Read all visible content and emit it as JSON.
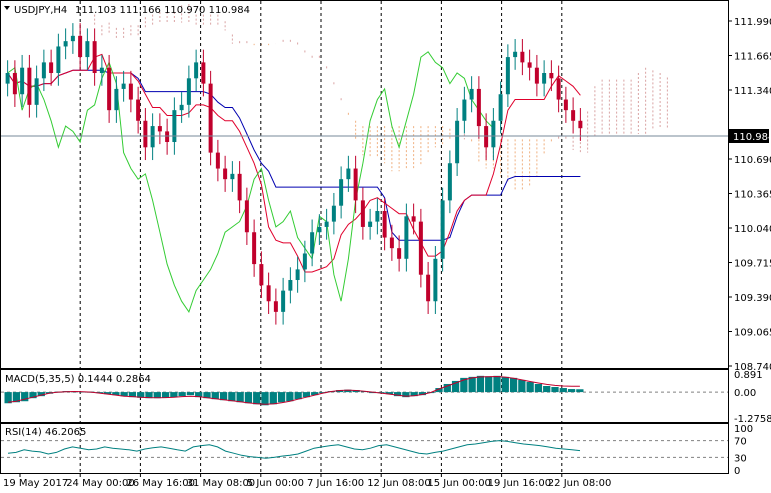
{
  "header": {
    "symbol_timeframe": "USDJPY,H4",
    "ohlc": "111.103 111.166 110.970 110.984",
    "menu_icon": "triangle-down-icon"
  },
  "colors": {
    "bull": "#008080",
    "bear": "#c0002c",
    "tenkan": "#e0002c",
    "kijun": "#0000b0",
    "chikou": "#33cc33",
    "cloud_bull": "#d9a3a3",
    "cloud_bear": "#f0b080",
    "macd_hist": "#008080",
    "macd_signal": "#c0002c",
    "rsi": "#008080",
    "price_marker_bg": "#000000"
  },
  "chart_data": [
    {
      "type": "candlestick",
      "title": "USDJPY,H4",
      "current_price": "110.984",
      "y_tick_labels": [
        "111.990",
        "111.665",
        "111.340",
        "110.690",
        "110.365",
        "110.040",
        "109.715",
        "109.390",
        "109.065",
        "108.740"
      ],
      "ylim": [
        108.74,
        112.15
      ],
      "x_tick_labels": [
        "19 May 2017",
        "24 May 00:00",
        "26 May 16:00",
        "31 May 08:00",
        "5 Jun 00:00",
        "7 Jun 16:00",
        "12 Jun 08:00",
        "15 Jun 00:00",
        "19 Jun 16:00",
        "22 Jun 08:00"
      ],
      "indicators": [
        "Ichimoku Kinko Hyo"
      ],
      "close_series": [
        111.5,
        111.3,
        111.55,
        111.2,
        111.45,
        111.6,
        111.5,
        111.75,
        111.8,
        111.85,
        111.65,
        111.8,
        111.5,
        111.55,
        111.15,
        111.35,
        111.4,
        111.25,
        111.05,
        110.8,
        111.0,
        110.95,
        110.85,
        111.15,
        111.2,
        111.45,
        111.6,
        111.4,
        110.75,
        110.6,
        110.5,
        110.55,
        110.3,
        110.0,
        109.7,
        109.5,
        109.35,
        109.25,
        109.45,
        109.55,
        109.65,
        109.8,
        110.0,
        110.05,
        110.1,
        110.25,
        110.5,
        110.6,
        110.3,
        110.05,
        110.1,
        110.2,
        109.95,
        109.85,
        109.75,
        110.15,
        110.1,
        109.6,
        109.35,
        109.75,
        110.3,
        110.65,
        111.05,
        111.25,
        111.35,
        111.0,
        110.8,
        111.05,
        111.3,
        111.65,
        111.7,
        111.6,
        111.55,
        111.4,
        111.5,
        111.45,
        111.25,
        111.15,
        111.05,
        110.98
      ]
    },
    {
      "type": "bar",
      "title": "MACD(5,35,5) 0.1444 0.2864",
      "name": "MACD(5,35,5)",
      "values_shown": [
        "0.1444",
        "0.2864"
      ],
      "y_tick_labels": [
        "0.891",
        "0.00",
        "-1.2758"
      ],
      "ylim": [
        -1.2758,
        0.891
      ],
      "histogram": [
        -0.55,
        -0.5,
        -0.45,
        -0.3,
        -0.2,
        -0.08,
        0.02,
        0.05,
        0.04,
        0.03,
        0.02,
        0.0,
        -0.1,
        -0.15,
        -0.2,
        -0.25,
        -0.28,
        -0.3,
        -0.3,
        -0.28,
        -0.25,
        -0.2,
        -0.15,
        -0.25,
        -0.3,
        -0.35,
        -0.4,
        -0.45,
        -0.5,
        -0.55,
        -0.6,
        -0.65,
        -0.6,
        -0.5,
        -0.45,
        -0.35,
        -0.25,
        -0.15,
        -0.05,
        0.05,
        0.1,
        0.12,
        0.1,
        0.05,
        0.0,
        -0.05,
        -0.1,
        -0.2,
        -0.25,
        -0.2,
        -0.15,
        0.0,
        0.2,
        0.4,
        0.55,
        0.7,
        0.75,
        0.8,
        0.78,
        0.8,
        0.75,
        0.7,
        0.6,
        0.5,
        0.4,
        0.3,
        0.25,
        0.2,
        0.15,
        0.14
      ],
      "signal": [
        -0.5,
        -0.45,
        -0.35,
        -0.25,
        -0.15,
        -0.05,
        0.0,
        0.02,
        0.03,
        0.02,
        0.0,
        -0.05,
        -0.1,
        -0.15,
        -0.2,
        -0.22,
        -0.25,
        -0.27,
        -0.28,
        -0.27,
        -0.25,
        -0.22,
        -0.2,
        -0.22,
        -0.28,
        -0.33,
        -0.38,
        -0.43,
        -0.48,
        -0.53,
        -0.57,
        -0.6,
        -0.58,
        -0.52,
        -0.45,
        -0.35,
        -0.25,
        -0.15,
        -0.05,
        0.03,
        0.08,
        0.1,
        0.08,
        0.04,
        0.0,
        -0.05,
        -0.1,
        -0.15,
        -0.2,
        -0.18,
        -0.12,
        -0.02,
        0.15,
        0.3,
        0.45,
        0.6,
        0.7,
        0.75,
        0.76,
        0.77,
        0.74,
        0.68,
        0.6,
        0.52,
        0.45,
        0.38,
        0.33,
        0.3,
        0.29,
        0.2864
      ]
    },
    {
      "type": "line",
      "title": "RSI(14) 46.2065",
      "name": "RSI(14)",
      "value_shown": "46.2065",
      "y_tick_labels": [
        "100",
        "70",
        "30",
        "0"
      ],
      "levels": [
        70,
        30
      ],
      "ylim": [
        0,
        100
      ],
      "values": [
        40,
        42,
        48,
        45,
        43,
        38,
        42,
        50,
        55,
        52,
        48,
        50,
        55,
        52,
        50,
        48,
        45,
        50,
        53,
        55,
        52,
        48,
        45,
        55,
        58,
        60,
        55,
        45,
        40,
        35,
        32,
        30,
        28,
        30,
        33,
        35,
        38,
        45,
        52,
        55,
        58,
        60,
        55,
        50,
        48,
        52,
        58,
        60,
        55,
        50,
        45,
        40,
        38,
        42,
        45,
        50,
        55,
        60,
        62,
        65,
        68,
        70,
        68,
        65,
        62,
        60,
        58,
        55,
        52,
        50,
        48,
        46.2
      ]
    }
  ]
}
